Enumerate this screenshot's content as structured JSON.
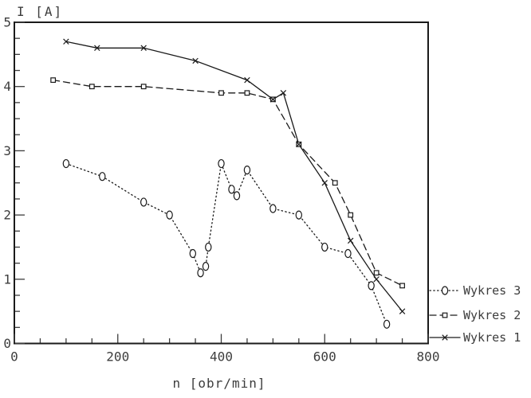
{
  "colors": {
    "ink": "#1a1a1a",
    "tick": "#3d3d3d",
    "background": "#ffffff"
  },
  "chart_data": {
    "type": "line",
    "title": "",
    "ylabel": "I [A]",
    "xlabel": "n [obr/min]",
    "xlim": [
      0,
      800
    ],
    "ylim": [
      0,
      5
    ],
    "x_major_ticks": [
      0,
      200,
      400,
      600,
      800
    ],
    "x_minor_step": 50,
    "y_major_ticks": [
      0,
      1,
      2,
      3,
      4,
      5
    ],
    "y_minor_step": 0.25,
    "grid": false,
    "legend_position": "right-bottom",
    "legend_order_top_to_bottom": [
      "Wykres 3",
      "Wykres 2",
      "Wykres 1"
    ],
    "series": [
      {
        "name": "Wykres 1",
        "line": "solid",
        "marker": "x",
        "points": [
          [
            100,
            4.7
          ],
          [
            160,
            4.6
          ],
          [
            250,
            4.6
          ],
          [
            350,
            4.4
          ],
          [
            450,
            4.1
          ],
          [
            500,
            3.8
          ],
          [
            520,
            3.9
          ],
          [
            550,
            3.1
          ],
          [
            600,
            2.5
          ],
          [
            650,
            1.6
          ],
          [
            700,
            1.0
          ],
          [
            750,
            0.5
          ]
        ]
      },
      {
        "name": "Wykres 2",
        "line": "dashed",
        "marker": "square",
        "points": [
          [
            75,
            4.1
          ],
          [
            150,
            4.0
          ],
          [
            250,
            4.0
          ],
          [
            400,
            3.9
          ],
          [
            450,
            3.9
          ],
          [
            500,
            3.8
          ],
          [
            550,
            3.1
          ],
          [
            620,
            2.5
          ],
          [
            650,
            2.0
          ],
          [
            700,
            1.1
          ],
          [
            750,
            0.9
          ]
        ]
      },
      {
        "name": "Wykres 3",
        "line": "dotted",
        "marker": "circle",
        "points": [
          [
            100,
            2.8
          ],
          [
            170,
            2.6
          ],
          [
            250,
            2.2
          ],
          [
            300,
            2.0
          ],
          [
            345,
            1.4
          ],
          [
            360,
            1.1
          ],
          [
            370,
            1.2
          ],
          [
            375,
            1.5
          ],
          [
            400,
            2.8
          ],
          [
            420,
            2.4
          ],
          [
            430,
            2.3
          ],
          [
            450,
            2.7
          ],
          [
            500,
            2.1
          ],
          [
            550,
            2.0
          ],
          [
            600,
            1.5
          ],
          [
            645,
            1.4
          ],
          [
            690,
            0.9
          ],
          [
            720,
            0.3
          ]
        ]
      }
    ]
  }
}
